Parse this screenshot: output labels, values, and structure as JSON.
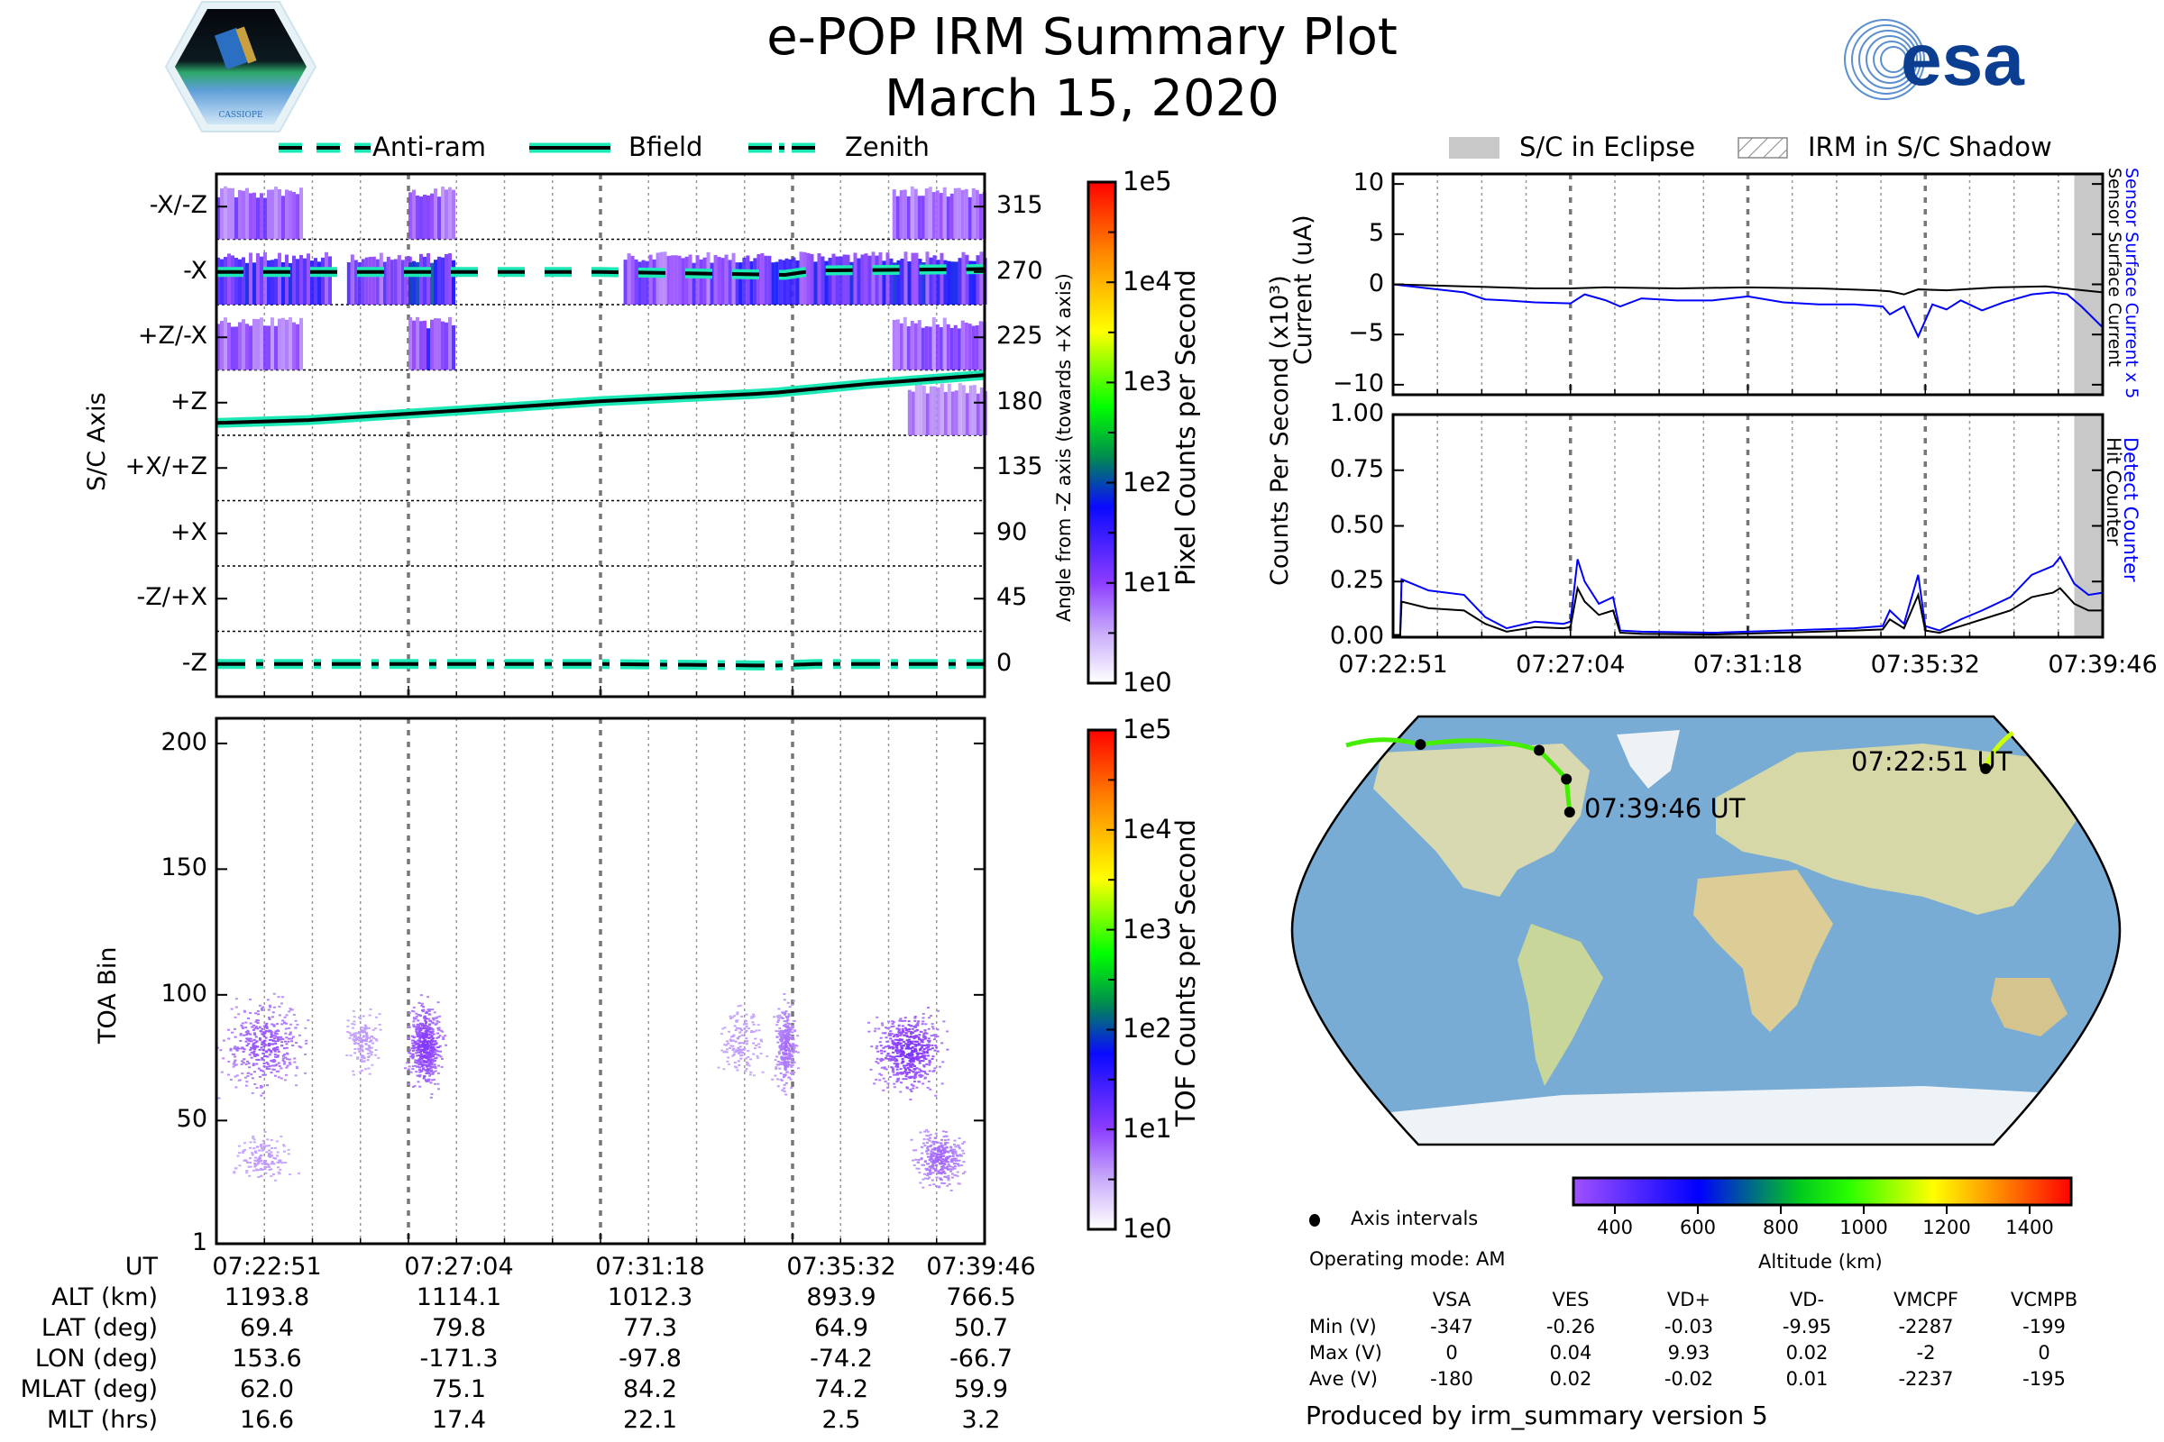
{
  "header": {
    "title": "e-POP IRM Summary Plot",
    "date": "March 15, 2020",
    "left_logo": "CASSIOPE",
    "right_logo": "esa"
  },
  "colors": {
    "trace_teal": "#1de9b6",
    "blue": "#0000ff",
    "eclipse_gray": "#c8c8c8",
    "track_green": "#33dd00",
    "track_yellow": "#ccff00"
  },
  "legend_left": [
    {
      "label": "Anti-ram",
      "style": "dashed"
    },
    {
      "label": "Bfield",
      "style": "solid"
    },
    {
      "label": "Zenith",
      "style": "dashdot"
    }
  ],
  "legend_right": [
    {
      "label": "S/C in Eclipse",
      "style": "gray-fill"
    },
    {
      "label": "IRM in S/C Shadow",
      "style": "hatch"
    }
  ],
  "time_ticks": [
    "07:22:51",
    "07:27:04",
    "07:31:18",
    "07:35:32",
    "07:39:46"
  ],
  "orbit_table": {
    "rows": [
      {
        "label": "UT",
        "values": [
          "07:22:51",
          "07:27:04",
          "07:31:18",
          "07:35:32",
          "07:39:46"
        ]
      },
      {
        "label": "ALT (km)",
        "values": [
          "1193.8",
          "1114.1",
          "1012.3",
          "893.9",
          "766.5"
        ]
      },
      {
        "label": "LAT (deg)",
        "values": [
          "69.4",
          "79.8",
          "77.3",
          "64.9",
          "50.7"
        ]
      },
      {
        "label": "LON (deg)",
        "values": [
          "153.6",
          "-171.3",
          "-97.8",
          "-74.2",
          "-66.7"
        ]
      },
      {
        "label": "MLAT (deg)",
        "values": [
          "62.0",
          "75.1",
          "84.2",
          "74.2",
          "59.9"
        ]
      },
      {
        "label": "MLT (hrs)",
        "values": [
          "16.6",
          "17.4",
          "22.1",
          "2.5",
          "3.2"
        ]
      }
    ]
  },
  "chart_data": [
    {
      "type": "heatmap",
      "name": "pixel-angle",
      "ylabel": "S/C Axis",
      "ylabel_right": "Angle from -Z axis (towards +X axis)",
      "y_ticks_left": [
        "-X/-Z",
        "-X",
        "+Z/-X",
        "+Z",
        "+X/+Z",
        "+X",
        "-Z/+X",
        "-Z"
      ],
      "y_ticks_right": [
        "315",
        "270",
        "225",
        "180",
        "135",
        "90",
        "45",
        "0"
      ],
      "ylim": [
        -22.5,
        337.5
      ],
      "colorbar": {
        "label": "Pixel Counts per Second",
        "ticks": [
          "1e0",
          "1e1",
          "1e2",
          "1e3",
          "1e4",
          "1e5"
        ],
        "scale": "log"
      },
      "lines": [
        {
          "name": "Anti-ram",
          "style": "dashed",
          "x": [
            0,
            0.3,
            0.5,
            0.74,
            0.78,
            1.0
          ],
          "y": [
            270,
            270,
            270,
            268,
            271,
            272
          ]
        },
        {
          "name": "Bfield",
          "style": "solid",
          "x": [
            0,
            0.12,
            0.3,
            0.5,
            0.7,
            0.73,
            0.85,
            1.0
          ],
          "y": [
            166,
            168,
            174,
            181,
            186,
            187,
            193,
            199
          ]
        },
        {
          "name": "Zenith",
          "style": "dashdot",
          "x": [
            0,
            0.3,
            0.5,
            0.7,
            0.73,
            0.78,
            1.0
          ],
          "y": [
            0,
            0,
            0,
            -1,
            -1,
            0,
            0
          ]
        }
      ],
      "bands": [
        {
          "angle": 315,
          "segments": [
            [
              0,
              0.11,
              0.5
            ],
            [
              0.25,
              0.31,
              0.5
            ],
            [
              0.88,
              1.0,
              0.5
            ]
          ]
        },
        {
          "angle": 270,
          "segments": [
            [
              0,
              0.15,
              0.8
            ],
            [
              0.17,
              0.25,
              0.6
            ],
            [
              0.25,
              0.31,
              0.9
            ],
            [
              0.53,
              0.68,
              0.6
            ],
            [
              0.68,
              0.74,
              0.8
            ],
            [
              0.74,
              1.0,
              0.85
            ]
          ]
        },
        {
          "angle": 225,
          "segments": [
            [
              0,
              0.11,
              0.5
            ],
            [
              0.25,
              0.31,
              0.7
            ],
            [
              0.88,
              1.0,
              0.5
            ]
          ]
        },
        {
          "angle": 180,
          "segments": [
            [
              0.9,
              1.0,
              0.35
            ]
          ]
        }
      ]
    },
    {
      "type": "heatmap",
      "name": "tof",
      "ylabel": "TOA Bin",
      "y_ticks": [
        "1",
        "50",
        "100",
        "150",
        "200"
      ],
      "ylim": [
        1,
        210
      ],
      "colorbar": {
        "label": "TOF Counts per Second",
        "ticks": [
          "1e0",
          "1e1",
          "1e2",
          "1e3",
          "1e4",
          "1e5"
        ],
        "scale": "log"
      },
      "blobs": [
        {
          "x": 0.06,
          "y": 80,
          "wx": 0.07,
          "wy": 15,
          "intensity": 0.55
        },
        {
          "x": 0.06,
          "y": 35,
          "wx": 0.05,
          "wy": 8,
          "intensity": 0.2
        },
        {
          "x": 0.27,
          "y": 80,
          "wx": 0.03,
          "wy": 14,
          "intensity": 0.7
        },
        {
          "x": 0.19,
          "y": 82,
          "wx": 0.03,
          "wy": 10,
          "intensity": 0.2
        },
        {
          "x": 0.74,
          "y": 80,
          "wx": 0.02,
          "wy": 15,
          "intensity": 0.4
        },
        {
          "x": 0.68,
          "y": 82,
          "wx": 0.04,
          "wy": 12,
          "intensity": 0.2
        },
        {
          "x": 0.9,
          "y": 78,
          "wx": 0.06,
          "wy": 13,
          "intensity": 0.75
        },
        {
          "x": 0.94,
          "y": 35,
          "wx": 0.04,
          "wy": 10,
          "intensity": 0.45
        }
      ]
    },
    {
      "type": "line",
      "name": "current",
      "ylabel": "Current (uA)",
      "ylim": [
        -11,
        11
      ],
      "y_ticks": [
        "10",
        "5",
        "0",
        "−5",
        "−10"
      ],
      "right_labels": [
        {
          "text": "Sensor Surface Current x 5",
          "color": "#0000ff"
        },
        {
          "text": "Sensor Surface Current",
          "color": "#000000"
        }
      ],
      "eclipse_start": 0.96,
      "series": [
        {
          "name": "Sensor Surface Current",
          "color": "#000000",
          "x": [
            0,
            0.1,
            0.2,
            0.25,
            0.3,
            0.4,
            0.5,
            0.6,
            0.68,
            0.7,
            0.72,
            0.74,
            0.78,
            0.85,
            0.92,
            0.96,
            1.0
          ],
          "y": [
            0,
            -0.2,
            -0.4,
            -0.4,
            -0.3,
            -0.4,
            -0.3,
            -0.4,
            -0.6,
            -0.7,
            -1.0,
            -0.5,
            -0.6,
            -0.3,
            -0.2,
            -0.5,
            -0.8
          ]
        },
        {
          "name": "Sensor Surface Current x 5",
          "color": "#0000ff",
          "x": [
            0,
            0.05,
            0.1,
            0.13,
            0.16,
            0.2,
            0.25,
            0.27,
            0.3,
            0.32,
            0.35,
            0.4,
            0.45,
            0.5,
            0.55,
            0.6,
            0.65,
            0.69,
            0.7,
            0.72,
            0.74,
            0.76,
            0.78,
            0.8,
            0.83,
            0.86,
            0.9,
            0.93,
            0.95,
            0.97,
            1.0
          ],
          "y": [
            0,
            -0.4,
            -0.8,
            -1.5,
            -1.6,
            -1.8,
            -1.9,
            -1.0,
            -1.6,
            -2.2,
            -1.4,
            -1.6,
            -1.6,
            -1.2,
            -1.8,
            -2.0,
            -2.0,
            -2.2,
            -3.0,
            -2.2,
            -5.2,
            -2.0,
            -2.5,
            -1.6,
            -2.6,
            -1.8,
            -1.0,
            -0.8,
            -1.0,
            -2.2,
            -4.3
          ]
        }
      ]
    },
    {
      "type": "line",
      "name": "counts",
      "ylabel": "Counts Per Second (x10³)",
      "ylim": [
        0,
        1.0
      ],
      "y_ticks": [
        "1.00",
        "0.75",
        "0.50",
        "0.25",
        "0.00"
      ],
      "x_ticks": [
        "07:22:51",
        "07:27:04",
        "07:31:18",
        "07:35:32",
        "07:39:46"
      ],
      "right_labels": [
        {
          "text": "Detect Counter",
          "color": "#0000ff"
        },
        {
          "text": "Hit Counter",
          "color": "#000000"
        }
      ],
      "eclipse_start": 0.96,
      "series": [
        {
          "name": "Detect Counter",
          "color": "#0000ff",
          "x": [
            0,
            0.01,
            0.012,
            0.05,
            0.1,
            0.13,
            0.16,
            0.2,
            0.24,
            0.25,
            0.26,
            0.27,
            0.29,
            0.31,
            0.32,
            0.35,
            0.45,
            0.55,
            0.65,
            0.69,
            0.7,
            0.72,
            0.74,
            0.75,
            0.77,
            0.8,
            0.83,
            0.87,
            0.9,
            0.93,
            0.94,
            0.96,
            0.98,
            1.0
          ],
          "y": [
            0.01,
            0.01,
            0.26,
            0.21,
            0.19,
            0.09,
            0.04,
            0.07,
            0.06,
            0.07,
            0.35,
            0.25,
            0.15,
            0.18,
            0.03,
            0.025,
            0.02,
            0.03,
            0.04,
            0.05,
            0.12,
            0.06,
            0.28,
            0.05,
            0.03,
            0.08,
            0.12,
            0.18,
            0.28,
            0.32,
            0.36,
            0.24,
            0.19,
            0.2
          ]
        },
        {
          "name": "Hit Counter",
          "color": "#000000",
          "x": [
            0,
            0.01,
            0.012,
            0.05,
            0.1,
            0.13,
            0.16,
            0.2,
            0.24,
            0.25,
            0.26,
            0.27,
            0.29,
            0.31,
            0.32,
            0.35,
            0.45,
            0.55,
            0.65,
            0.69,
            0.7,
            0.72,
            0.74,
            0.75,
            0.77,
            0.8,
            0.83,
            0.87,
            0.9,
            0.93,
            0.94,
            0.96,
            0.98,
            1.0
          ],
          "y": [
            0.01,
            0.01,
            0.16,
            0.13,
            0.12,
            0.06,
            0.025,
            0.045,
            0.04,
            0.045,
            0.22,
            0.16,
            0.1,
            0.12,
            0.02,
            0.015,
            0.012,
            0.02,
            0.03,
            0.035,
            0.08,
            0.04,
            0.19,
            0.03,
            0.02,
            0.05,
            0.08,
            0.12,
            0.18,
            0.2,
            0.22,
            0.15,
            0.12,
            0.12
          ]
        }
      ]
    }
  ],
  "map": {
    "labels": [
      "07:22:51 UT",
      "07:39:46 UT"
    ],
    "track_points": [
      {
        "lon": 153.6,
        "lat": 69.4
      },
      {
        "lon": -171.3,
        "lat": 79.8
      },
      {
        "lon": -97.8,
        "lat": 77.3
      },
      {
        "lon": -74.2,
        "lat": 64.9
      },
      {
        "lon": -66.7,
        "lat": 50.7
      }
    ],
    "altitude_colorbar": {
      "label": "Altitude (km)",
      "ticks": [
        "400",
        "600",
        "800",
        "1000",
        "1200",
        "1400"
      ],
      "range": [
        300,
        1500
      ]
    },
    "legend_axis_intervals": "Axis intervals"
  },
  "footer": {
    "operating_mode": "Operating mode: AM",
    "voltage_table": {
      "columns": [
        "VSA",
        "VES",
        "VD+",
        "VD-",
        "VMCPF",
        "VCMPB"
      ],
      "rows": [
        {
          "label": "Min (V)",
          "values": [
            "-347",
            "-0.26",
            "-0.03",
            "-9.95",
            "-2287",
            "-199"
          ]
        },
        {
          "label": "Max (V)",
          "values": [
            "0",
            "0.04",
            "9.93",
            "0.02",
            "-2",
            "0"
          ]
        },
        {
          "label": "Ave (V)",
          "values": [
            "-180",
            "0.02",
            "-0.02",
            "0.01",
            "-2237",
            "-195"
          ]
        }
      ]
    },
    "produced_by": "Produced by irm_summary version 5"
  }
}
